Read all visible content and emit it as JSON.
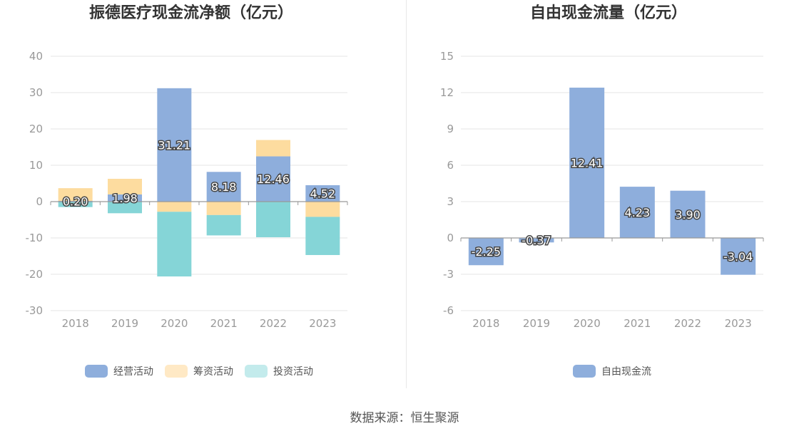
{
  "chart_data": [
    {
      "type": "bar",
      "stacked": true,
      "title": "振德医疗现金流净额（亿元）",
      "categories": [
        "2018",
        "2019",
        "2020",
        "2021",
        "2022",
        "2023"
      ],
      "ylim": [
        -30,
        40
      ],
      "yticks": [
        40,
        30,
        20,
        10,
        0,
        -10,
        -20,
        -30
      ],
      "grid": true,
      "legend_position": "bottom",
      "series": [
        {
          "name": "经营活动",
          "color": "#8eaedc",
          "values": [
            0.2,
            1.98,
            31.21,
            8.18,
            12.46,
            4.52
          ],
          "labels": [
            "0.20",
            "1.98",
            "31.21",
            "8.18",
            "12.46",
            "4.52"
          ]
        },
        {
          "name": "筹资活动",
          "color": "#fddc9f",
          "values": [
            3.5,
            4.3,
            -2.8,
            -3.7,
            4.5,
            -4.2
          ]
        },
        {
          "name": "投资活动",
          "color": "#85d5d7",
          "values": [
            -1.5,
            -3.2,
            -17.8,
            -5.6,
            -9.8,
            -10.5
          ]
        }
      ],
      "legend_colors": [
        "#8eaedc",
        "#ffe9c5",
        "#c3ebec"
      ]
    },
    {
      "type": "bar",
      "title": "自由现金流量（亿元）",
      "categories": [
        "2018",
        "2019",
        "2020",
        "2021",
        "2022",
        "2023"
      ],
      "ylim": [
        -6,
        15
      ],
      "yticks": [
        15,
        12,
        9,
        6,
        3,
        0,
        -3,
        -6
      ],
      "grid": true,
      "legend_position": "bottom",
      "series": [
        {
          "name": "自由现金流",
          "color": "#8eaedc",
          "values": [
            -2.25,
            -0.37,
            12.41,
            4.23,
            3.9,
            -3.04
          ],
          "labels": [
            "-2.25",
            "-0.37",
            "12.41",
            "4.23",
            "3.90",
            "-3.04"
          ]
        }
      ]
    }
  ],
  "source": "数据来源：恒生聚源"
}
